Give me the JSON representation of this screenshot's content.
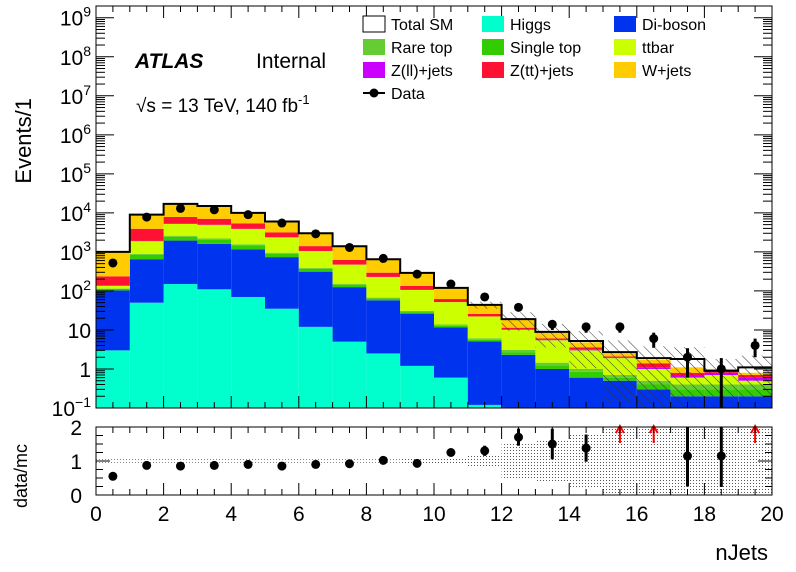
{
  "chart_data": [
    {
      "type": "stacked-histogram",
      "y_scale": "log",
      "ylabel": "Events/1",
      "ylim": [
        0.1,
        2000000000
      ],
      "xlim": [
        0,
        20
      ],
      "bin_edges": [
        0,
        1,
        2,
        3,
        4,
        5,
        6,
        7,
        8,
        9,
        10,
        11,
        12,
        13,
        14,
        15,
        16,
        17,
        18,
        19,
        20
      ],
      "annotations": {
        "experiment": "ATLAS",
        "status": "Internal",
        "energy_prefix": "√s = 13 TeV, 140 fb",
        "energy_sup": "-1"
      },
      "yticks": [
        {
          "value": 0.1,
          "base": "10",
          "exp": "−1"
        },
        {
          "value": 1,
          "base": "1",
          "exp": ""
        },
        {
          "value": 10,
          "base": "10",
          "exp": ""
        },
        {
          "value": 100,
          "base": "10",
          "exp": "2"
        },
        {
          "value": 1000,
          "base": "10",
          "exp": "3"
        },
        {
          "value": 10000,
          "base": "10",
          "exp": "4"
        },
        {
          "value": 100000,
          "base": "10",
          "exp": "5"
        },
        {
          "value": 1000000,
          "base": "10",
          "exp": "6"
        },
        {
          "value": 10000000,
          "base": "10",
          "exp": "7"
        },
        {
          "value": 100000000,
          "base": "10",
          "exp": "8"
        },
        {
          "value": 1000000000,
          "base": "10",
          "exp": "9"
        }
      ],
      "series": [
        {
          "name": "Higgs",
          "color": "#00ffcc",
          "values": [
            3,
            50,
            150,
            110,
            70,
            35,
            12,
            5,
            2.5,
            1.2,
            0.6,
            0.12,
            0.1,
            0.1,
            0.1,
            0.1,
            0.1,
            0.1,
            0.1,
            0.1
          ]
        },
        {
          "name": "Di-boson",
          "color": "#0033ee",
          "values": [
            100,
            600,
            1800,
            1500,
            1100,
            700,
            300,
            120,
            55,
            25,
            11,
            5,
            2.2,
            0.9,
            0.5,
            0.4,
            0.2,
            0.1,
            0.1,
            0.1
          ]
        },
        {
          "name": "Single top",
          "color": "#33cc00",
          "values": [
            10,
            200,
            500,
            450,
            300,
            160,
            55,
            18,
            6,
            2.5,
            1.2,
            0.5,
            0.4,
            0.25,
            0.25,
            0.1,
            0.1,
            0.1,
            0.1,
            0.1
          ]
        },
        {
          "name": "Rare top",
          "color": "#66cc33",
          "values": [
            2,
            40,
            150,
            150,
            100,
            60,
            25,
            10,
            4,
            2,
            1,
            0.5,
            0.4,
            0.2,
            0.15,
            0.1,
            0.1,
            0.1,
            0.1,
            0.1
          ]
        },
        {
          "name": "ttbar",
          "color": "#ccff00",
          "values": [
            20,
            1000,
            2600,
            2700,
            2300,
            1400,
            660,
            320,
            160,
            75,
            38,
            16,
            7,
            4,
            2,
            1.2,
            0.5,
            0.2,
            0.3,
            0.1
          ]
        },
        {
          "name": "Z(ll)+jets",
          "color": "#cc00ff",
          "values": [
            1,
            20,
            50,
            45,
            30,
            15,
            5,
            2,
            1,
            0.5,
            0.2,
            0.1,
            0.1,
            0.1,
            0.1,
            0.1,
            0.1,
            0.1,
            0.1,
            0.1
          ]
        },
        {
          "name": "Z(tt)+jets",
          "color": "#ff1133",
          "values": [
            100,
            2000,
            2600,
            2100,
            1500,
            800,
            350,
            150,
            65,
            28,
            10,
            3.5,
            1.2,
            0.5,
            0.5,
            0.1,
            0.3,
            0.1,
            0.1,
            0.1
          ]
        },
        {
          "name": "W+jets",
          "color": "#ffcc00",
          "values": [
            800,
            5000,
            9000,
            8000,
            4500,
            2800,
            1600,
            800,
            360,
            160,
            60,
            20,
            7,
            2.5,
            1.2,
            0.4,
            0.3,
            0.3,
            0.1,
            0.1
          ]
        }
      ],
      "total_sm": {
        "name": "Total SM",
        "values": [
          1000,
          9000,
          17000,
          15000,
          10000,
          6000,
          3000,
          1400,
          650,
          290,
          120,
          44,
          19,
          8.9,
          5.2,
          2.7,
          1.9,
          1.8,
          0.9,
          1.1
        ]
      },
      "data_series": {
        "name": "Data",
        "values": [
          520,
          7800,
          13000,
          12000,
          9000,
          5500,
          2900,
          1300,
          680,
          270,
          150,
          70,
          38,
          14,
          12,
          12,
          6,
          2,
          1,
          4
        ],
        "yerr_low": [
          25,
          90,
          115,
          110,
          95,
          75,
          55,
          36,
          26,
          16,
          12,
          8,
          6,
          4,
          3.5,
          3.5,
          2.5,
          1.4,
          0.9,
          2
        ],
        "yerr_high": [
          25,
          90,
          115,
          110,
          95,
          75,
          55,
          36,
          26,
          16,
          12,
          8,
          6,
          4,
          3.5,
          3.5,
          2.5,
          1.4,
          0.9,
          2
        ]
      },
      "legend_placement": "top-right",
      "legend_columns": [
        [
          "Total SM",
          "Rare top",
          "Z(ll)+jets",
          "Data"
        ],
        [
          "Higgs",
          "Single top",
          "Z(tt)+jets"
        ],
        [
          "Di-boson",
          "ttbar",
          "W+jets"
        ]
      ]
    },
    {
      "type": "ratio",
      "ylabel": "data/mc",
      "xlabel": "nJets",
      "ylim": [
        0,
        2
      ],
      "xlim": [
        0,
        20
      ],
      "yticks": [
        0,
        1,
        2
      ],
      "xticks": [
        0,
        2,
        4,
        6,
        8,
        10,
        12,
        14,
        16,
        18,
        20
      ],
      "x": [
        0.5,
        1.5,
        2.5,
        3.5,
        4.5,
        5.5,
        6.5,
        7.5,
        8.5,
        9.5,
        10.5,
        11.5,
        12.5,
        13.5,
        14.5,
        15.5,
        16.5,
        17.5,
        18.5,
        19.5
      ],
      "values": [
        0.55,
        0.87,
        0.85,
        0.87,
        0.9,
        0.85,
        0.9,
        0.92,
        1.02,
        0.93,
        1.25,
        1.3,
        1.7,
        1.5,
        1.38,
        null,
        null,
        1.15,
        1.15,
        null
      ],
      "yerr": [
        0.03,
        0.02,
        0.02,
        0.02,
        0.02,
        0.02,
        0.02,
        0.03,
        0.04,
        0.06,
        0.1,
        0.15,
        0.25,
        0.45,
        0.4,
        null,
        null,
        0.9,
        1.2,
        null
      ],
      "mc_uncertainty": [
        0.05,
        0.05,
        0.05,
        0.05,
        0.05,
        0.05,
        0.05,
        0.05,
        0.05,
        0.06,
        0.1,
        0.2,
        0.5,
        0.6,
        0.8,
        1.0,
        1.0,
        1.0,
        1.0,
        1.0
      ],
      "offscale_arrows_x": [
        15.5,
        16.5,
        19.5
      ],
      "arrow_color": "#ff0000"
    }
  ]
}
